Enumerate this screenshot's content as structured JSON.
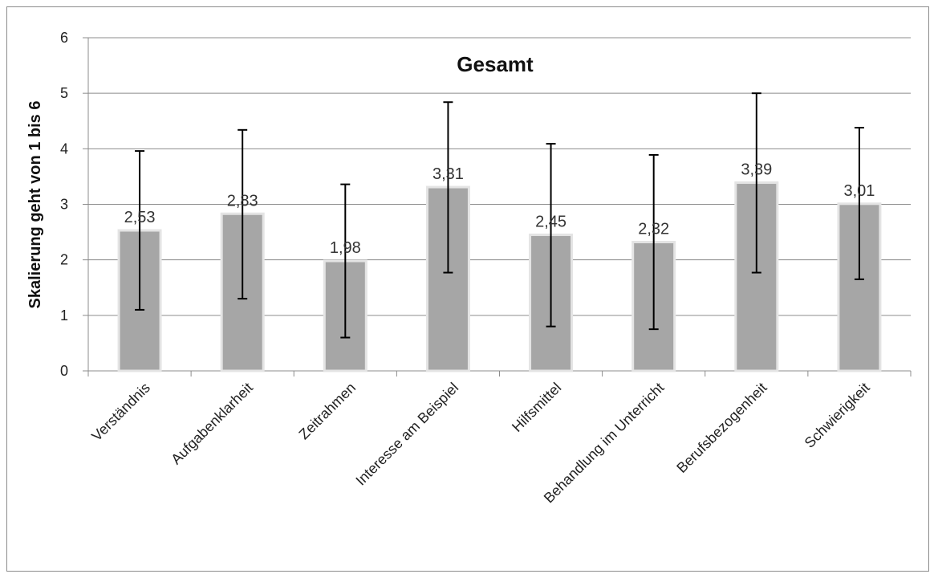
{
  "chart_data": {
    "type": "bar",
    "title": "Gesamt",
    "xlabel": "",
    "ylabel": "Skalierung geht von 1 bis 6",
    "ylim": [
      0,
      6
    ],
    "yticks": [
      0,
      1,
      2,
      3,
      4,
      5,
      6
    ],
    "grid": true,
    "categories": [
      "Verständnis",
      "Aufgabenklarheit",
      "Zeitrahmen",
      "Interesse am Beispiel",
      "Hilfsmittel",
      "Behandlung im Unterricht",
      "Berufsbezogenheit",
      "Schwierigkeit"
    ],
    "values": [
      2.53,
      2.83,
      1.98,
      3.31,
      2.45,
      2.32,
      3.39,
      3.01
    ],
    "value_labels": [
      "2,53",
      "2,83",
      "1,98",
      "3,31",
      "2,45",
      "2,32",
      "3,39",
      "3,01"
    ],
    "error_low": [
      1.1,
      1.3,
      0.6,
      1.77,
      0.8,
      0.75,
      1.77,
      1.65
    ],
    "error_high": [
      3.96,
      4.34,
      3.36,
      4.84,
      4.09,
      3.89,
      5.0,
      4.38
    ],
    "colors": {
      "bar": "#a6a6a6",
      "bar_edge": "#e4e4e4",
      "grid": "#8c8c8c",
      "error": "#000000"
    }
  }
}
